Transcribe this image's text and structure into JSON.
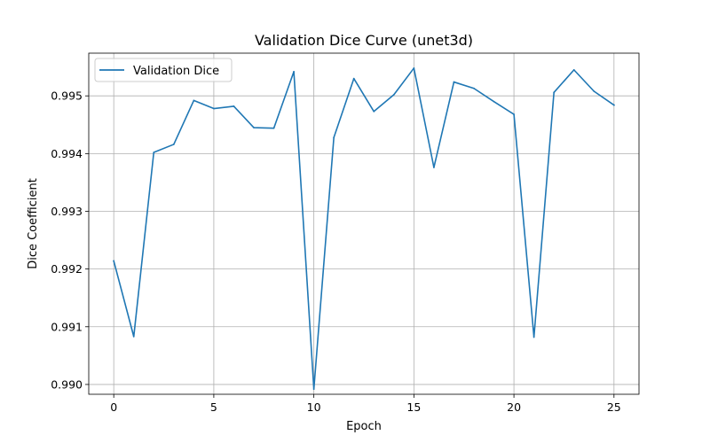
{
  "chart_data": {
    "type": "line",
    "title": "Validation Dice Curve (unet3d)",
    "xlabel": "Epoch",
    "ylabel": "Dice Coefficient",
    "x": [
      0,
      1,
      2,
      3,
      4,
      5,
      6,
      7,
      8,
      9,
      10,
      11,
      12,
      13,
      14,
      15,
      16,
      17,
      18,
      19,
      20,
      21,
      22,
      23,
      24,
      25
    ],
    "series": [
      {
        "name": "Validation Dice",
        "color": "#1f77b4",
        "values": [
          0.99214,
          0.99083,
          0.99402,
          0.99416,
          0.99492,
          0.99478,
          0.99482,
          0.99445,
          0.99444,
          0.99542,
          0.98992,
          0.99428,
          0.9953,
          0.99473,
          0.99502,
          0.99548,
          0.99376,
          0.99524,
          0.99513,
          0.9949,
          0.99468,
          0.99082,
          0.99506,
          0.99545,
          0.99508,
          0.99484
        ]
      }
    ],
    "xlim": [
      -1.25,
      26.25
    ],
    "ylim": [
      0.98983,
      0.99574
    ],
    "x_ticks": [
      "0",
      "5",
      "10",
      "15",
      "20",
      "25"
    ],
    "y_ticks": [
      "0.990",
      "0.991",
      "0.992",
      "0.993",
      "0.994",
      "0.995"
    ],
    "grid": true,
    "legend_position": "upper-left"
  }
}
